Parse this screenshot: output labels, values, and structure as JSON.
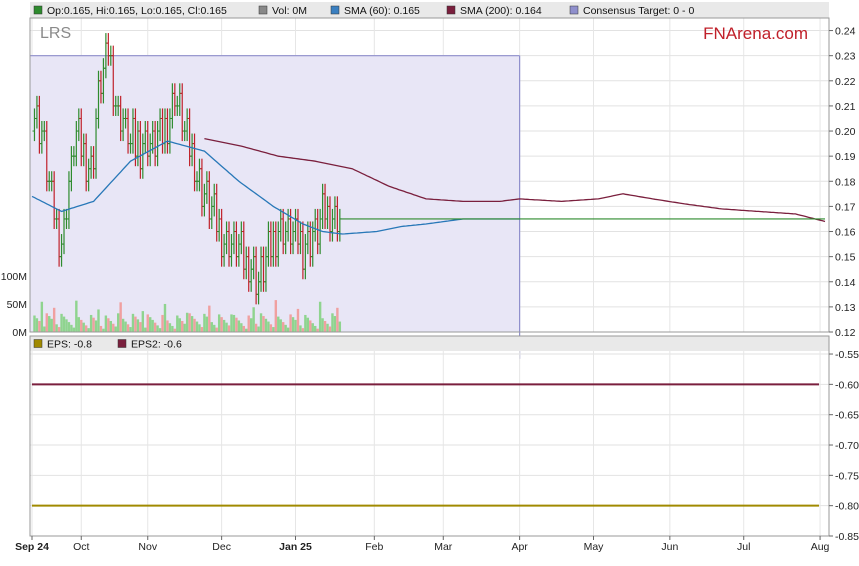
{
  "legend_top": [
    {
      "label": "Op:0.165, Hi:0.165, Lo:0.165, Cl:0.165",
      "color": "#2e8b2e"
    },
    {
      "label": "Vol: 0M",
      "color": "#888888"
    },
    {
      "label": "SMA (60): 0.165",
      "color": "#3a7fc0"
    },
    {
      "label": "SMA (200): 0.164",
      "color": "#7a1f3d"
    },
    {
      "label": "Consensus Target: 0 - 0",
      "color": "#8f8fcc"
    }
  ],
  "legend_bottom": [
    {
      "label": "EPS: -0.8",
      "color": "#a08a00"
    },
    {
      "label": "EPS2: -0.6",
      "color": "#7a1f3d"
    }
  ],
  "ticker": "LRS",
  "brand": "FNArena.com",
  "colors": {
    "up": "#2e8b2e",
    "down": "#c0202a",
    "sma60": "#2878b8",
    "sma200": "#7a1f3d",
    "consensus_fill": "#e8e6f6",
    "consensus_line": "#8f8fcc",
    "eps": "#a08a00",
    "eps2": "#7a1f3d",
    "brand": "#c0202a"
  },
  "chart_data": [
    {
      "type": "candlestick",
      "title": "",
      "x_labels": [
        "Sep 24",
        "Oct",
        "Nov",
        "Dec",
        "Jan 25",
        "Feb",
        "Mar",
        "Apr",
        "May",
        "Jun",
        "Jul",
        "Aug"
      ],
      "x_label_day": [
        0,
        20,
        47,
        77,
        107,
        139,
        167,
        198,
        228,
        259,
        289,
        320
      ],
      "ylim": [
        0.12,
        0.245
      ],
      "y_ticks": [
        "0.12",
        "0.13",
        "0.14",
        "0.15",
        "0.16",
        "0.17",
        "0.18",
        "0.19",
        "0.20",
        "0.21",
        "0.22",
        "0.23",
        "0.24"
      ],
      "volume_ticks": [
        "0M",
        "50M",
        "100M"
      ],
      "price_anchor_days": [
        0,
        4,
        8,
        12,
        18,
        24,
        28,
        31,
        34,
        40,
        48,
        54,
        58,
        62,
        68,
        74,
        80,
        86,
        92,
        96,
        100,
        104,
        110,
        116,
        121,
        125
      ],
      "price_anchor_closes": [
        0.21,
        0.2,
        0.17,
        0.155,
        0.2,
        0.185,
        0.22,
        0.232,
        0.21,
        0.195,
        0.195,
        0.2,
        0.215,
        0.2,
        0.18,
        0.165,
        0.155,
        0.15,
        0.142,
        0.152,
        0.16,
        0.16,
        0.155,
        0.162,
        0.17,
        0.165
      ],
      "sma60_days": [
        0,
        12,
        25,
        40,
        55,
        70,
        84,
        98,
        110,
        118,
        126,
        140,
        150,
        160,
        175,
        198
      ],
      "sma60": [
        0.174,
        0.168,
        0.172,
        0.188,
        0.196,
        0.192,
        0.18,
        0.17,
        0.163,
        0.16,
        0.159,
        0.16,
        0.162,
        0.163,
        0.165,
        0.165
      ],
      "sma200_days": [
        70,
        85,
        100,
        115,
        130,
        145,
        160,
        175,
        190,
        198,
        215,
        230,
        240,
        252,
        265,
        280,
        295,
        310,
        322
      ],
      "sma200": [
        0.197,
        0.194,
        0.19,
        0.188,
        0.185,
        0.178,
        0.173,
        0.172,
        0.172,
        0.173,
        0.172,
        0.173,
        0.175,
        0.173,
        0.171,
        0.169,
        0.168,
        0.167,
        0.164
      ],
      "flat_line_days": [
        125,
        322
      ],
      "flat_line_value": 0.165,
      "consensus_target": {
        "days": [
          0,
          198
        ],
        "value": 0.23
      }
    },
    {
      "type": "line",
      "title": "",
      "ylim": [
        -0.85,
        -0.545
      ],
      "y_ticks": [
        "-0.55",
        "-0.60",
        "-0.65",
        "-0.70",
        "-0.75",
        "-0.80",
        "-0.85"
      ],
      "series": [
        {
          "name": "EPS",
          "value": -0.8
        },
        {
          "name": "EPS2",
          "value": -0.6
        }
      ]
    }
  ]
}
